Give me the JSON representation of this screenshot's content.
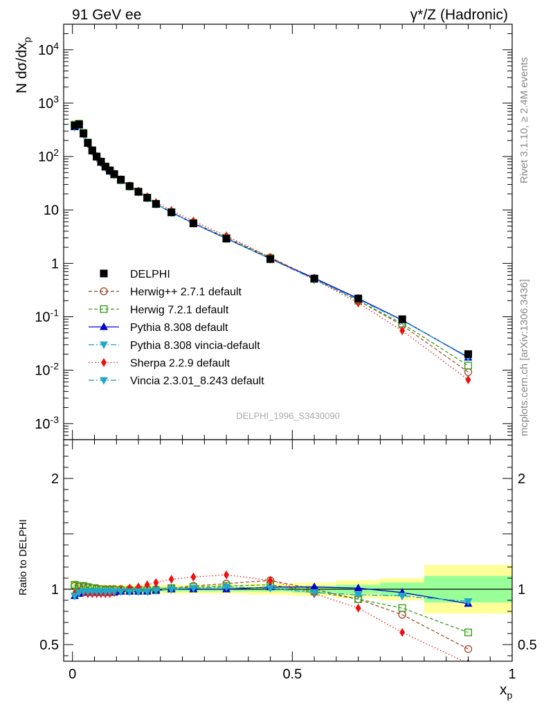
{
  "header": {
    "left": "91 GeV ee",
    "right": "γ*/Z (Hadronic)"
  },
  "side_text": {
    "top": "Rivet 3.1.10, ≥ 2.4M events",
    "bottom": "mcplots.cern.ch [arXiv:1306.3436]"
  },
  "watermark": "DELPHI_1996_S3430090",
  "chart_data": [
    {
      "type": "scatter",
      "panel": "main",
      "ylabel": "N dσ/dx_p",
      "yscale": "log",
      "ylim": [
        0.0005,
        30000
      ],
      "xlim": [
        -0.02,
        1.0
      ],
      "y_ticks": [
        {
          "value": 10000,
          "label": "10^4"
        },
        {
          "value": 1000,
          "label": "10^3"
        },
        {
          "value": 100,
          "label": "10^2"
        },
        {
          "value": 10,
          "label": "10"
        },
        {
          "value": 1,
          "label": "1"
        },
        {
          "value": 0.1,
          "label": "10^-1"
        },
        {
          "value": 0.01,
          "label": "10^-2"
        },
        {
          "value": 0.001,
          "label": "10^-3"
        }
      ],
      "legend_position": "center-left",
      "series": [
        {
          "name": "DELPHI",
          "color": "#000000",
          "marker": "square-filled",
          "line": "none",
          "x": [
            0.005,
            0.015,
            0.025,
            0.035,
            0.045,
            0.055,
            0.065,
            0.075,
            0.085,
            0.095,
            0.11,
            0.13,
            0.15,
            0.17,
            0.19,
            0.225,
            0.275,
            0.35,
            0.45,
            0.55,
            0.65,
            0.75,
            0.9
          ],
          "y": [
            380,
            400,
            270,
            180,
            130,
            100,
            80,
            65,
            55,
            47,
            37,
            28,
            22,
            17,
            13,
            9,
            5.6,
            2.9,
            1.2,
            0.52,
            0.22,
            0.09,
            0.02
          ]
        },
        {
          "name": "Herwig++ 2.7.1 default",
          "color": "#a0522d",
          "marker": "circle-open",
          "line": "dashed",
          "x": [
            0.005,
            0.015,
            0.025,
            0.035,
            0.045,
            0.055,
            0.065,
            0.075,
            0.085,
            0.095,
            0.11,
            0.13,
            0.15,
            0.17,
            0.19,
            0.225,
            0.275,
            0.35,
            0.45,
            0.55,
            0.65,
            0.75,
            0.9
          ],
          "y": [
            392,
            410,
            276,
            183,
            132,
            101,
            81,
            65,
            55,
            47,
            37,
            28,
            22,
            17,
            13,
            9.1,
            5.75,
            3.05,
            1.29,
            0.52,
            0.201,
            0.0693,
            0.0092
          ]
        },
        {
          "name": "Herwig 7.2.1 default",
          "color": "#3a9e1a",
          "marker": "square-open",
          "line": "dashed",
          "x": [
            0.005,
            0.015,
            0.025,
            0.035,
            0.045,
            0.055,
            0.065,
            0.075,
            0.085,
            0.095,
            0.11,
            0.13,
            0.15,
            0.17,
            0.19,
            0.225,
            0.275,
            0.35,
            0.45,
            0.55,
            0.65,
            0.75,
            0.9
          ],
          "y": [
            395,
            412,
            278,
            184,
            131,
            100,
            80,
            64,
            54,
            46,
            36,
            27.5,
            21.7,
            16.8,
            12.9,
            9.1,
            5.7,
            2.99,
            1.25,
            0.51,
            0.2,
            0.0747,
            0.0122
          ]
        },
        {
          "name": "Pythia 8.308 default",
          "color": "#0000cc",
          "marker": "triangle-up-filled",
          "line": "solid",
          "x": [
            0.005,
            0.015,
            0.025,
            0.035,
            0.045,
            0.055,
            0.065,
            0.075,
            0.085,
            0.095,
            0.11,
            0.13,
            0.15,
            0.17,
            0.19,
            0.225,
            0.275,
            0.35,
            0.45,
            0.55,
            0.65,
            0.75,
            0.9
          ],
          "y": [
            357,
            384,
            262,
            174,
            126,
            97,
            77,
            63,
            53,
            45.6,
            36,
            27.4,
            21.6,
            16.7,
            12.9,
            9.0,
            5.6,
            2.9,
            1.22,
            0.53,
            0.22,
            0.087,
            0.0173
          ]
        },
        {
          "name": "Pythia 8.308 vincia-default",
          "color": "#20a8c8",
          "marker": "triangle-down-filled",
          "line": "dashdot",
          "x": [
            0.005,
            0.015,
            0.025,
            0.035,
            0.045,
            0.055,
            0.065,
            0.075,
            0.085,
            0.095,
            0.11,
            0.13,
            0.15,
            0.17,
            0.19,
            0.225,
            0.275,
            0.35,
            0.45,
            0.55,
            0.65,
            0.75,
            0.9
          ],
          "y": [
            357,
            388,
            265,
            177,
            128,
            98,
            78,
            63,
            53,
            46,
            36,
            27.5,
            21.6,
            16.7,
            12.9,
            9.0,
            5.7,
            2.95,
            1.21,
            0.5,
            0.21,
            0.085,
            0.0178
          ]
        },
        {
          "name": "Sherpa 2.2.9 default",
          "color": "#ee1111",
          "marker": "diamond-filled",
          "line": "dotted",
          "x": [
            0.005,
            0.015,
            0.025,
            0.035,
            0.045,
            0.055,
            0.065,
            0.075,
            0.085,
            0.095,
            0.11,
            0.13,
            0.15,
            0.17,
            0.19,
            0.225,
            0.275,
            0.35,
            0.45,
            0.55,
            0.65,
            0.75,
            0.9
          ],
          "y": [
            365,
            392,
            262,
            173,
            125,
            96,
            77,
            63,
            53,
            45.6,
            37,
            28.5,
            22.6,
            17.7,
            13.8,
            9.8,
            6.2,
            3.27,
            1.29,
            0.5,
            0.182,
            0.0549,
            0.0066
          ]
        },
        {
          "name": "Vincia 2.3.01_8.243 default",
          "color": "#20a8c8",
          "marker": "triangle-down-filled",
          "line": "dashdot",
          "x": [
            0.005,
            0.015,
            0.025,
            0.035,
            0.045,
            0.055,
            0.065,
            0.075,
            0.085,
            0.095,
            0.11,
            0.13,
            0.15,
            0.17,
            0.19,
            0.225,
            0.275,
            0.35,
            0.45,
            0.55,
            0.65,
            0.75,
            0.9
          ],
          "y": [
            357,
            388,
            265,
            177,
            128,
            98,
            78,
            63,
            53,
            46,
            36,
            27.5,
            21.6,
            16.7,
            12.9,
            9.0,
            5.7,
            2.95,
            1.21,
            0.5,
            0.21,
            0.085,
            0.0178
          ]
        }
      ]
    },
    {
      "type": "scatter",
      "panel": "ratio",
      "xlabel": "x_p",
      "ylabel": "Ratio to DELPHI",
      "xlim": [
        -0.02,
        1.0
      ],
      "ylim": [
        0.35,
        2.35
      ],
      "x_ticks": [
        {
          "value": 0,
          "label": "0"
        },
        {
          "value": 0.5,
          "label": "0.5"
        },
        {
          "value": 1,
          "label": "1"
        }
      ],
      "y_ticks": [
        {
          "value": 2,
          "label": "2"
        },
        {
          "value": 1,
          "label": "1"
        },
        {
          "value": 0.5,
          "label": "0.5"
        }
      ],
      "uncertainty_bands": {
        "x_edges": [
          0,
          0.01,
          0.02,
          0.03,
          0.04,
          0.05,
          0.06,
          0.07,
          0.08,
          0.09,
          0.1,
          0.12,
          0.14,
          0.16,
          0.18,
          0.2,
          0.25,
          0.3,
          0.4,
          0.5,
          0.6,
          0.7,
          0.8,
          1.0
        ],
        "stat": [
          0.04,
          0.02,
          0.02,
          0.02,
          0.02,
          0.02,
          0.02,
          0.02,
          0.02,
          0.02,
          0.02,
          0.02,
          0.02,
          0.02,
          0.02,
          0.02,
          0.02,
          0.02,
          0.02,
          0.03,
          0.04,
          0.06,
          0.12
        ],
        "total": [
          0.08,
          0.04,
          0.04,
          0.04,
          0.04,
          0.04,
          0.04,
          0.04,
          0.04,
          0.04,
          0.04,
          0.04,
          0.04,
          0.04,
          0.04,
          0.04,
          0.04,
          0.04,
          0.05,
          0.06,
          0.08,
          0.1,
          0.22
        ],
        "stat_color": "#99ff99",
        "total_color": "#ffff99"
      },
      "series": [
        {
          "name": "Herwig++ 2.7.1 default",
          "color": "#a0522d",
          "marker": "circle-open",
          "line": "dashed",
          "x": [
            0.005,
            0.015,
            0.025,
            0.035,
            0.045,
            0.055,
            0.065,
            0.075,
            0.085,
            0.095,
            0.11,
            0.13,
            0.15,
            0.17,
            0.19,
            0.225,
            0.275,
            0.35,
            0.45,
            0.55,
            0.65,
            0.75,
            0.9
          ],
          "y": [
            1.03,
            1.025,
            1.02,
            1.015,
            1.01,
            1.01,
            1.0,
            1.0,
            1.0,
            1.0,
            1.0,
            1.0,
            1.0,
            1.0,
            1.0,
            1.01,
            1.03,
            1.05,
            1.08,
            1.0,
            0.91,
            0.77,
            0.46
          ]
        },
        {
          "name": "Herwig 7.2.1 default",
          "color": "#3a9e1a",
          "marker": "square-open",
          "line": "dashed",
          "x": [
            0.005,
            0.015,
            0.025,
            0.035,
            0.045,
            0.055,
            0.065,
            0.075,
            0.085,
            0.095,
            0.11,
            0.13,
            0.15,
            0.17,
            0.19,
            0.225,
            0.275,
            0.35,
            0.45,
            0.55,
            0.65,
            0.75,
            0.9
          ],
          "y": [
            1.04,
            1.03,
            1.03,
            1.02,
            1.01,
            1.0,
            1.0,
            0.99,
            0.99,
            0.99,
            0.99,
            0.99,
            0.99,
            0.99,
            0.99,
            1.01,
            1.02,
            1.03,
            1.04,
            0.98,
            0.91,
            0.83,
            0.61
          ]
        },
        {
          "name": "Pythia 8.308 default",
          "color": "#0000cc",
          "marker": "triangle-up-filled",
          "line": "solid",
          "x": [
            0.005,
            0.015,
            0.025,
            0.035,
            0.045,
            0.055,
            0.065,
            0.075,
            0.085,
            0.095,
            0.11,
            0.13,
            0.15,
            0.17,
            0.19,
            0.225,
            0.275,
            0.35,
            0.45,
            0.55,
            0.65,
            0.75,
            0.9
          ],
          "y": [
            0.94,
            0.96,
            0.97,
            0.97,
            0.97,
            0.97,
            0.97,
            0.97,
            0.97,
            0.97,
            0.98,
            0.98,
            0.98,
            0.98,
            0.99,
            1.0,
            1.0,
            1.0,
            1.02,
            1.02,
            1.01,
            0.97,
            0.87
          ]
        },
        {
          "name": "Pythia 8.308 vincia-default",
          "color": "#20a8c8",
          "marker": "triangle-down-filled",
          "line": "dashdot",
          "x": [
            0.005,
            0.015,
            0.025,
            0.035,
            0.045,
            0.055,
            0.065,
            0.075,
            0.085,
            0.095,
            0.11,
            0.13,
            0.15,
            0.17,
            0.19,
            0.225,
            0.275,
            0.35,
            0.45,
            0.55,
            0.65,
            0.75,
            0.9
          ],
          "y": [
            0.94,
            0.97,
            0.98,
            0.98,
            0.98,
            0.98,
            0.98,
            0.98,
            0.98,
            0.98,
            0.98,
            0.98,
            0.98,
            0.98,
            0.99,
            1.0,
            1.01,
            1.02,
            1.01,
            0.97,
            0.95,
            0.94,
            0.89
          ]
        },
        {
          "name": "Sherpa 2.2.9 default",
          "color": "#ee1111",
          "marker": "diamond-filled",
          "line": "dotted",
          "x": [
            0.005,
            0.015,
            0.025,
            0.035,
            0.045,
            0.055,
            0.065,
            0.075,
            0.085,
            0.095,
            0.11,
            0.13,
            0.15,
            0.17,
            0.19,
            0.225,
            0.275,
            0.35,
            0.45,
            0.55,
            0.65,
            0.75,
            0.9
          ],
          "y": [
            0.96,
            0.98,
            0.97,
            0.96,
            0.96,
            0.96,
            0.96,
            0.96,
            0.96,
            0.97,
            0.99,
            1.01,
            1.02,
            1.04,
            1.06,
            1.09,
            1.11,
            1.13,
            1.08,
            0.96,
            0.83,
            0.61,
            0.33
          ]
        },
        {
          "name": "Vincia 2.3.01_8.243 default",
          "color": "#20a8c8",
          "marker": "triangle-down-filled",
          "line": "dashdot",
          "x": [
            0.005,
            0.015,
            0.025,
            0.035,
            0.045,
            0.055,
            0.065,
            0.075,
            0.085,
            0.095,
            0.11,
            0.13,
            0.15,
            0.17,
            0.19,
            0.225,
            0.275,
            0.35,
            0.45,
            0.55,
            0.65,
            0.75,
            0.9
          ],
          "y": [
            0.94,
            0.97,
            0.98,
            0.98,
            0.98,
            0.98,
            0.98,
            0.98,
            0.98,
            0.98,
            0.98,
            0.98,
            0.98,
            0.98,
            0.99,
            1.0,
            1.01,
            1.02,
            1.01,
            0.97,
            0.95,
            0.94,
            0.89
          ]
        }
      ]
    }
  ]
}
